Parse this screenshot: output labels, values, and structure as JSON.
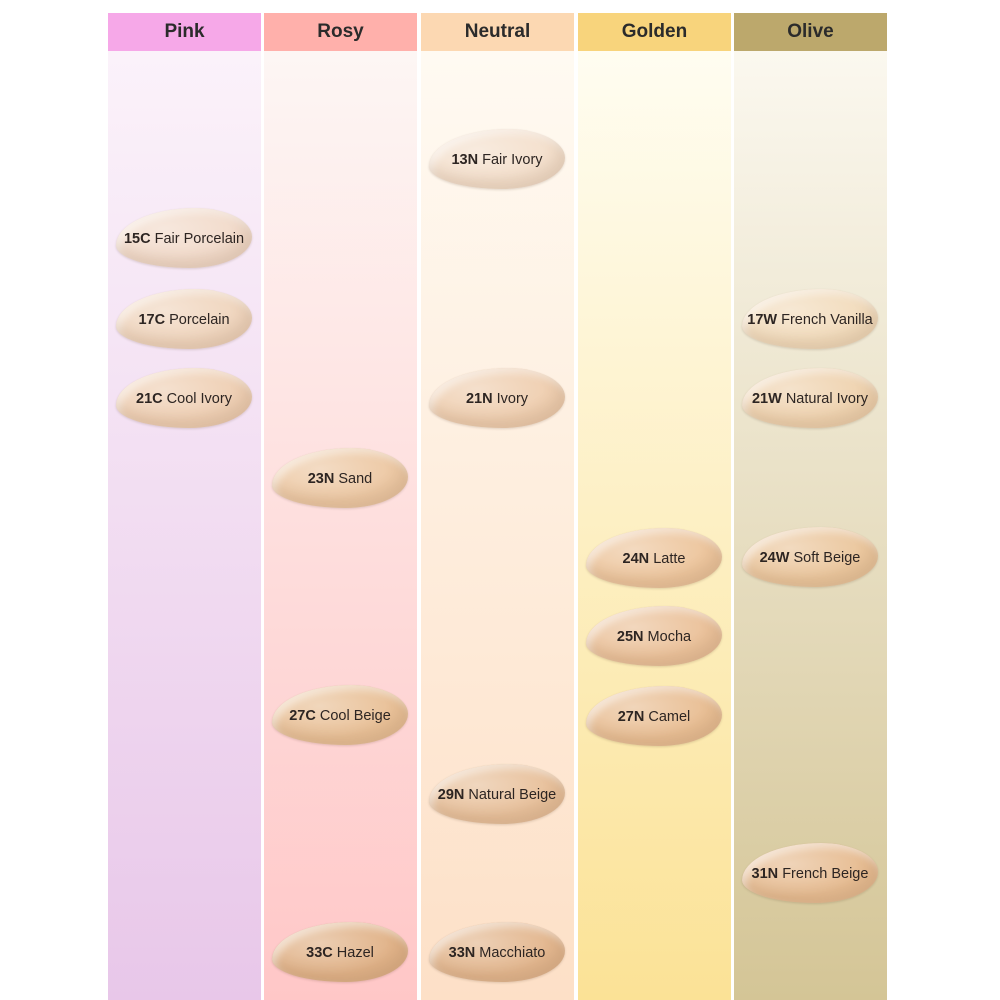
{
  "columns": [
    {
      "name": "Pink",
      "swatches": [
        {
          "code": "15C",
          "name": "Fair Porcelain",
          "color": "#f2dbcb"
        },
        {
          "code": "17C",
          "name": "Porcelain",
          "color": "#f0d6bf"
        },
        {
          "code": "21C",
          "name": "Cool Ivory",
          "color": "#efd0b5"
        }
      ]
    },
    {
      "name": "Rosy",
      "swatches": [
        {
          "code": "23N",
          "name": "Sand",
          "color": "#edc9a5"
        },
        {
          "code": "27C",
          "name": "Cool Beige",
          "color": "#e9c198"
        },
        {
          "code": "33C",
          "name": "Hazel",
          "color": "#e1b389"
        }
      ]
    },
    {
      "name": "Neutral",
      "swatches": [
        {
          "code": "13N",
          "name": "Fair Ivory",
          "color": "#f4e0cd"
        },
        {
          "code": "21N",
          "name": "Ivory",
          "color": "#efcfb1"
        },
        {
          "code": "29N",
          "name": "Natural Beige",
          "color": "#e8c19c"
        },
        {
          "code": "33N",
          "name": "Macchiato",
          "color": "#e3b78f"
        }
      ]
    },
    {
      "name": "Golden",
      "swatches": [
        {
          "code": "24N",
          "name": "Latte",
          "color": "#edc69e"
        },
        {
          "code": "25N",
          "name": "Mocha",
          "color": "#ebc29b"
        },
        {
          "code": "27N",
          "name": "Camel",
          "color": "#e9bf95"
        }
      ]
    },
    {
      "name": "Olive",
      "swatches": [
        {
          "code": "17W",
          "name": "French Vanilla",
          "color": "#f2dcbd"
        },
        {
          "code": "21W",
          "name": "Natural Ivory",
          "color": "#efd3b0"
        },
        {
          "code": "24W",
          "name": "Soft Beige",
          "color": "#ebc79e"
        },
        {
          "code": "31N",
          "name": "French Beige",
          "color": "#e7bd93"
        }
      ]
    }
  ]
}
